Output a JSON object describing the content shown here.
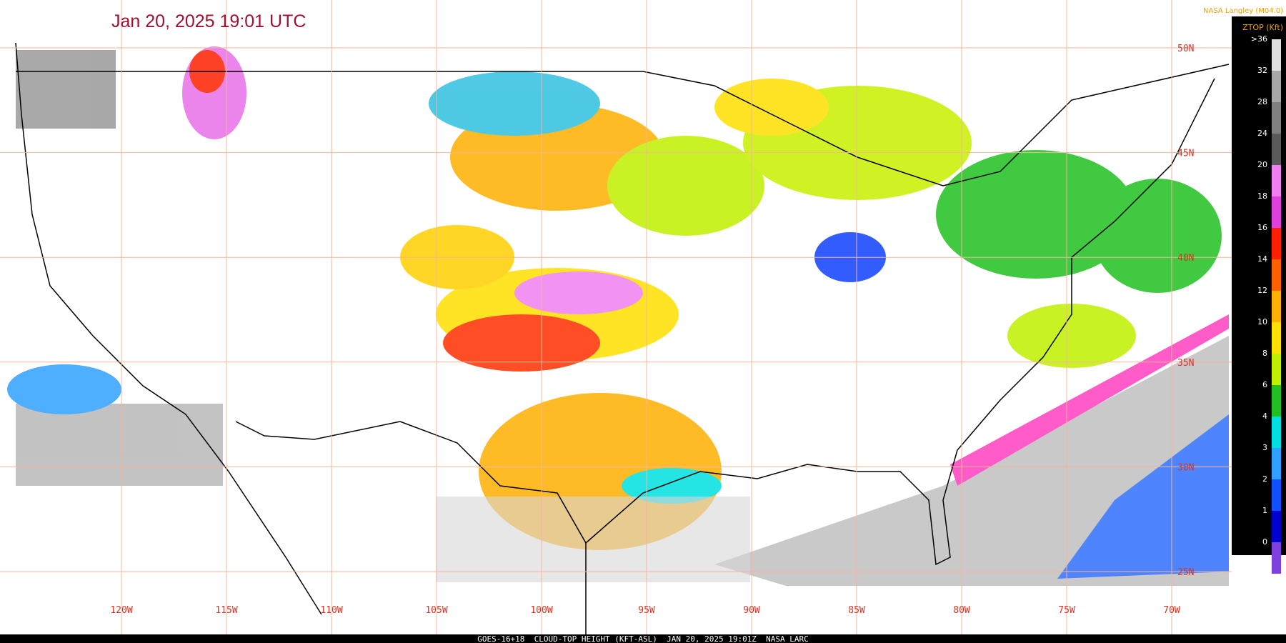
{
  "header": {
    "title": "Jan 20, 2025 19:01 UTC",
    "source": "NASA Langley (M04.0)"
  },
  "map": {
    "lon_labels": [
      "120W",
      "115W",
      "110W",
      "105W",
      "100W",
      "95W",
      "90W",
      "85W",
      "80W",
      "75W",
      "70W"
    ],
    "lat_labels": [
      "50N",
      "45N",
      "40N",
      "35N",
      "30N",
      "25N"
    ]
  },
  "scale": {
    "title": "ZTOP (Kft)",
    "labels": [
      ">36",
      "32",
      "28",
      "24",
      "20",
      "18",
      "16",
      "14",
      "12",
      "10",
      "8",
      "6",
      "4",
      "3",
      "2",
      "1",
      "0"
    ],
    "colors": [
      "#e0e0e0",
      "#a8a8a8",
      "#808080",
      "#5a5a5a",
      "#f080f0",
      "#e040e0",
      "#ff2000",
      "#ff6000",
      "#ffb000",
      "#ffe000",
      "#c0f000",
      "#20c020",
      "#00e0e0",
      "#30a0ff",
      "#1050ff",
      "#0000d0",
      "#8040e0"
    ]
  },
  "footer": {
    "caption": "GOES-16+18  CLOUD-TOP HEIGHT (KFT-ASL)  JAN 20, 2025 19:01Z  NASA LARC"
  }
}
